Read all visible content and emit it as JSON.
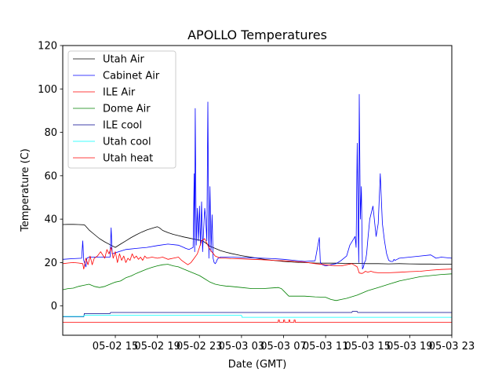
{
  "chart_data": {
    "type": "line",
    "title": "APOLLO Temperatures",
    "xlabel": "Date (GMT)",
    "ylabel": "Temperature (C)",
    "xlim": [
      0,
      37
    ],
    "ylim": [
      -13.5,
      120
    ],
    "grid": false,
    "legend_position": "top-left",
    "x_unit": "hours since 05-02 10:00",
    "x_ticks": [
      {
        "value": 5,
        "label": "05-02 15"
      },
      {
        "value": 9,
        "label": "05-02 19"
      },
      {
        "value": 13,
        "label": "05-02 23"
      },
      {
        "value": 17,
        "label": "05-03 03"
      },
      {
        "value": 21,
        "label": "05-03 07"
      },
      {
        "value": 25,
        "label": "05-03 11"
      },
      {
        "value": 29,
        "label": "05-03 15"
      },
      {
        "value": 33,
        "label": "05-03 19"
      },
      {
        "value": 37,
        "label": "05-03 23"
      }
    ],
    "y_ticks": [
      0,
      20,
      40,
      60,
      80,
      100,
      120
    ],
    "series": [
      {
        "name": "Utah Air",
        "color": "#000000",
        "x": [
          0,
          0.5,
          1,
          1.5,
          2,
          2.1,
          2.5,
          3,
          3.5,
          4,
          4.5,
          5,
          5.5,
          6,
          6.5,
          7,
          7.5,
          8,
          8.5,
          9,
          9.2,
          9.5,
          10,
          10.5,
          11,
          11.5,
          12,
          12.5,
          13,
          13.3,
          13.6,
          14,
          14.5,
          15,
          15.5,
          16,
          17,
          18,
          19,
          20,
          21,
          22,
          23,
          24,
          25,
          26,
          27,
          28,
          29,
          30,
          31,
          32,
          33,
          34,
          35,
          36,
          37
        ],
        "y": [
          37.5,
          37.6,
          37.6,
          37.5,
          37.4,
          37.2,
          35.0,
          33.0,
          31.0,
          29.5,
          28.2,
          27.0,
          28.5,
          30.0,
          31.5,
          32.8,
          34.0,
          35.0,
          35.8,
          36.5,
          36.0,
          34.8,
          33.8,
          33.0,
          32.4,
          31.8,
          31.3,
          30.8,
          30.3,
          30.0,
          29.0,
          27.5,
          26.5,
          25.5,
          24.8,
          24.2,
          23.2,
          22.4,
          21.6,
          21.0,
          20.5,
          20.2,
          20.0,
          19.8,
          19.7,
          19.7,
          19.6,
          19.6,
          19.5,
          19.5,
          19.4,
          19.5,
          19.4,
          19.3,
          19.3,
          19.2,
          19.2
        ]
      },
      {
        "name": "Cabinet Air",
        "color": "#0000ff",
        "x": [
          0,
          1,
          1.8,
          1.9,
          2.0,
          2.2,
          2.3,
          2.5,
          3,
          4,
          4.5,
          4.6,
          4.7,
          5,
          6,
          7,
          8,
          9,
          10,
          11,
          11.5,
          11.7,
          12,
          12.4,
          12.5,
          12.55,
          12.6,
          12.7,
          12.8,
          12.9,
          13.0,
          13.1,
          13.2,
          13.3,
          13.4,
          13.5,
          13.6,
          13.7,
          13.8,
          13.9,
          14.0,
          14.1,
          14.2,
          14.3,
          14.4,
          14.5,
          14.6,
          14.7,
          14.8,
          15,
          16,
          17,
          18,
          19,
          20,
          21,
          22,
          23,
          24,
          24.4,
          24.5,
          24.6,
          24.7,
          25,
          26,
          26.5,
          27,
          27.3,
          27.8,
          27.9,
          28.0,
          28.1,
          28.15,
          28.2,
          28.3,
          28.4,
          28.5,
          28.6,
          28.7,
          28.8,
          28.9,
          29.0,
          29.2,
          29.5,
          29.8,
          30.0,
          30.2,
          30.4,
          30.6,
          30.8,
          31.0,
          31.2,
          31.4,
          31.5,
          31.6,
          31.8,
          32,
          33,
          34,
          35,
          35.5,
          36,
          37
        ],
        "y": [
          21.5,
          21.8,
          22,
          30,
          21,
          18,
          22,
          22.5,
          22.5,
          22.5,
          22.5,
          36,
          24,
          24.5,
          26,
          26.5,
          27,
          27.8,
          28.5,
          28,
          27,
          26.5,
          26,
          27,
          61,
          25,
          91,
          28,
          45,
          30,
          46,
          28,
          48,
          25,
          35,
          45,
          40,
          30,
          94,
          22,
          55,
          25,
          42,
          22,
          20,
          19.5,
          20.2,
          21.5,
          22,
          22.5,
          22.5,
          22.3,
          22.2,
          22,
          21.8,
          21.5,
          21,
          20.5,
          20.8,
          31.5,
          20,
          19.5,
          19,
          18.5,
          19.5,
          21,
          23,
          28,
          32,
          27,
          75,
          33,
          20,
          97.5,
          40,
          55,
          17,
          18,
          20,
          21,
          24,
          30,
          40,
          46,
          32,
          38,
          61,
          38,
          30,
          24,
          21,
          20.5,
          20.5,
          21.5,
          21,
          21.5,
          22,
          22.5,
          23,
          23.5,
          22,
          22.5,
          22
        ]
      },
      {
        "name": "ILE Air",
        "color": "#ff0000",
        "x": [
          0,
          0.5,
          1,
          1.5,
          1.9,
          2.0,
          2.2,
          2.4,
          2.6,
          2.8,
          3,
          3.3,
          3.6,
          4,
          4.2,
          4.4,
          4.6,
          4.8,
          5,
          5.2,
          5.4,
          5.6,
          5.8,
          6,
          6.2,
          6.4,
          6.6,
          6.8,
          7,
          7.2,
          7.4,
          7.6,
          7.8,
          8,
          8.5,
          9,
          9.5,
          10,
          10.5,
          11,
          11.3,
          11.6,
          11.9,
          12.2,
          12.5,
          12.8,
          13.0,
          13.2,
          13.5,
          13.8,
          14,
          14.5,
          15,
          15.5,
          16,
          17,
          18,
          19,
          20,
          21,
          22,
          23,
          24,
          25,
          26,
          26.5,
          27,
          27.5,
          28,
          28.2,
          28.4,
          28.5,
          28.8,
          29,
          29.3,
          29.6,
          30,
          31,
          32,
          33,
          34,
          35,
          36,
          37
        ],
        "y": [
          19.5,
          19.8,
          20,
          19.8,
          19.5,
          17,
          22,
          19,
          23,
          19,
          22,
          23,
          25,
          22,
          26,
          24,
          27,
          22,
          25,
          20,
          24,
          21,
          23,
          20,
          22,
          21,
          24,
          22,
          23,
          21.5,
          22.5,
          21,
          23,
          22,
          22.5,
          22,
          22.5,
          21.5,
          22,
          22.5,
          21,
          20,
          19,
          20,
          22,
          24,
          27,
          30,
          31,
          28,
          26,
          23,
          22,
          22,
          21.8,
          21.7,
          21.5,
          21.3,
          21,
          20.8,
          20.5,
          20.2,
          19.5,
          19,
          18.5,
          18.5,
          19,
          19.5,
          18,
          15.2,
          15,
          15,
          16,
          15.5,
          16,
          15.5,
          15.3,
          15.3,
          15.5,
          15.8,
          16,
          16.5,
          16.8,
          17
        ]
      },
      {
        "name": "Dome Air",
        "color": "#008000",
        "x": [
          0,
          0.5,
          1,
          1.5,
          2,
          2.5,
          3,
          3.5,
          4,
          4.5,
          5,
          5.5,
          6,
          6.5,
          7,
          7.5,
          8,
          8.5,
          9,
          9.5,
          10,
          10.5,
          11,
          11.5,
          12,
          12.5,
          13,
          13.5,
          14,
          14.5,
          15,
          15.5,
          16,
          17,
          18,
          19,
          20,
          20.5,
          20.8,
          21,
          21.5,
          22,
          23,
          24,
          25,
          25.5,
          26,
          26.5,
          27,
          28,
          29,
          30,
          31,
          32,
          33,
          34,
          35,
          36,
          37
        ],
        "y": [
          7.5,
          8,
          8.2,
          9,
          9.5,
          10,
          9,
          8.5,
          9,
          10,
          11,
          11.5,
          13,
          13.8,
          15,
          16,
          17,
          17.8,
          18.5,
          19,
          19.2,
          18.5,
          18,
          17,
          16,
          15,
          14,
          12.5,
          11,
          10,
          9.5,
          9.2,
          9,
          8.5,
          8,
          8,
          8.3,
          8.5,
          8,
          7,
          4.5,
          4.5,
          4.5,
          4.2,
          4,
          3,
          2.5,
          3,
          3.5,
          5,
          7,
          8.5,
          10,
          11.5,
          12.5,
          13.5,
          14,
          14.5,
          14.8
        ]
      },
      {
        "name": "ILE cool",
        "color": "#00008b",
        "x": [
          0,
          2,
          2.05,
          4.5,
          4.55,
          12.7,
          12.75,
          27.5,
          27.55,
          28,
          28.05,
          37
        ],
        "y": [
          -5,
          -5,
          -3.5,
          -3.5,
          -3,
          -3,
          -3,
          -3,
          -2.5,
          -2.5,
          -3,
          -3
        ]
      },
      {
        "name": "Utah cool",
        "color": "#00ffff",
        "x": [
          0,
          2,
          2.05,
          12.7,
          12.75,
          17,
          17.05,
          37
        ],
        "y": [
          -4.8,
          -4.8,
          -4.3,
          -4.3,
          -4.3,
          -4.3,
          -5.2,
          -5.2
        ]
      },
      {
        "name": "Utah heat",
        "color": "#ff0000",
        "x": [
          0,
          20.5,
          20.5,
          20.6,
          20.6,
          21,
          21,
          21.1,
          21.1,
          21.5,
          21.5,
          21.6,
          21.6,
          22,
          22,
          22.1,
          22.1,
          37
        ],
        "y": [
          -7.5,
          -7.5,
          -6.5,
          -6.5,
          -7.5,
          -7.5,
          -6.5,
          -6.5,
          -7.5,
          -7.5,
          -6.5,
          -6.5,
          -7.5,
          -7.5,
          -6.5,
          -6.5,
          -7.5,
          -7.5
        ]
      }
    ]
  }
}
